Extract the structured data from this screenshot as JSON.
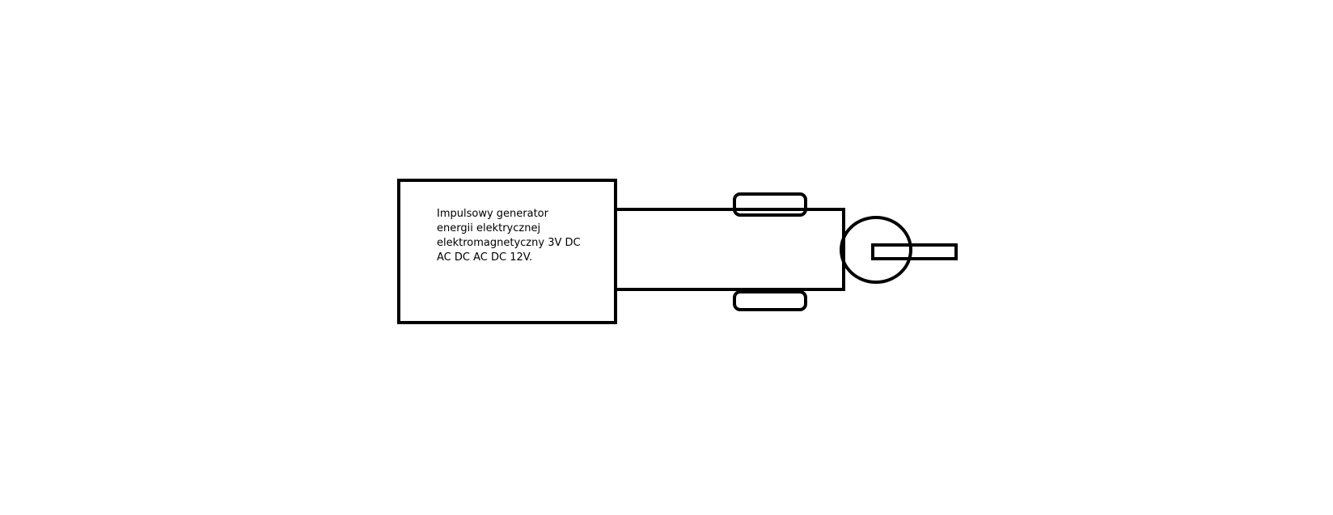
{
  "diagram": {
    "generator_label_lines": [
      "Impulsowy generator",
      "energii elektrycznej",
      "elektromagnetyczny 3V DC",
      "AC DC AC DC 12V."
    ],
    "colors": {
      "stroke": "#000000",
      "background": "#ffffff"
    }
  }
}
